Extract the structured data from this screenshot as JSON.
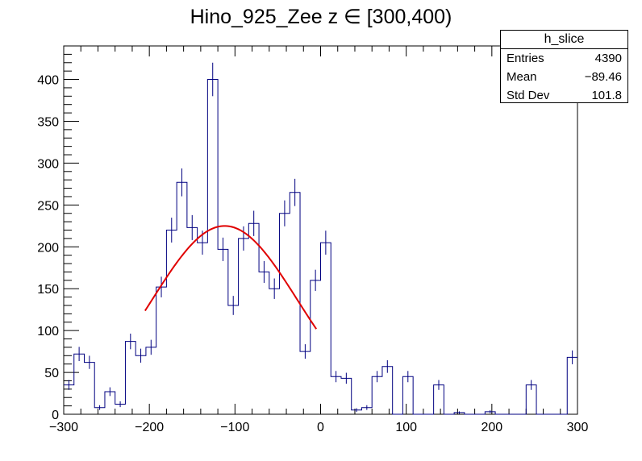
{
  "title": "Hino_925_Zee z  ∈ [300,400)",
  "stats": {
    "name": "h_slice",
    "rows": [
      {
        "label": "Entries",
        "value": "4390"
      },
      {
        "label": "Mean",
        "value": "−89.46"
      },
      {
        "label": "Std Dev",
        "value": "101.8"
      }
    ]
  },
  "chart_data": {
    "type": "histogram",
    "xlim": [
      -300,
      300
    ],
    "ylim": [
      0,
      440
    ],
    "x_ticks": [
      -300,
      -200,
      -100,
      0,
      100,
      200,
      300
    ],
    "x_tick_labels": [
      "−300",
      "−200",
      "−100",
      "0",
      "100",
      "200",
      "300"
    ],
    "y_ticks": [
      0,
      50,
      100,
      150,
      200,
      250,
      300,
      350,
      400
    ],
    "y_tick_labels": [
      "0",
      "50",
      "100",
      "150",
      "200",
      "250",
      "300",
      "350",
      "400"
    ],
    "bin_width": 12,
    "bin_start": -300,
    "line_color": "#000080",
    "fit_color": "#e00000",
    "counts": [
      35,
      72,
      62,
      8,
      27,
      12,
      87,
      70,
      80,
      152,
      220,
      277,
      223,
      205,
      400,
      197,
      130,
      210,
      228,
      170,
      150,
      240,
      265,
      75,
      160,
      205,
      45,
      43,
      5,
      8,
      45,
      57,
      0,
      45,
      0,
      0,
      35,
      0,
      2,
      0,
      0,
      3,
      0,
      0,
      0,
      35,
      0,
      0,
      0,
      68
    ],
    "fit": {
      "type": "gaus",
      "amplitude": 225,
      "mean": -112,
      "sigma": 85,
      "xrange": [
        -205,
        -5
      ]
    }
  }
}
